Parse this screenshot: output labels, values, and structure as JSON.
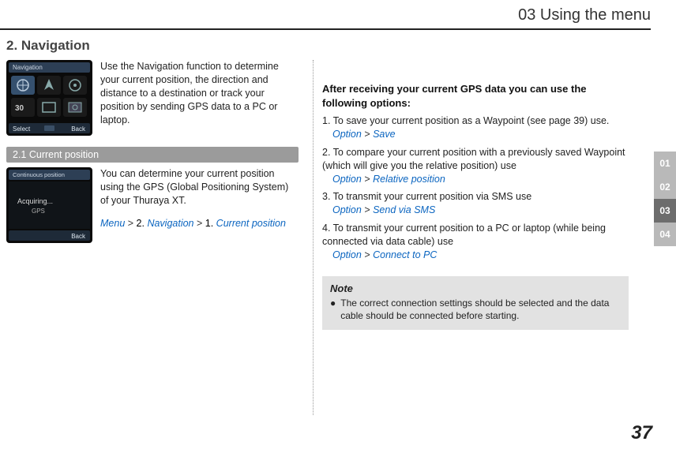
{
  "chapter_header": "03 Using the menu",
  "section_title": "2. Navigation",
  "intro_text": "Use the Navigation function to determine your current position, the direction and distance to a destination or track your position by sending GPS data to a PC or laptop.",
  "subsection_bar": "2.1  Current position",
  "subsection_text": "You can determine your current position using the GPS (Global Positioning System) of your Thuraya XT.",
  "menu_path": {
    "p1": "Menu",
    "s1": " > ",
    "p2": "2.",
    "p3": " Navigation",
    "s2": " > ",
    "p4": "1.",
    "p5": " Current position"
  },
  "right_heading": "After receiving your current GPS data you can use the following options:",
  "items": [
    {
      "num": "1.",
      "text": "To save your current position as a Waypoint (see page 39) use.",
      "opt1": "Option",
      "sep": " > ",
      "opt2": "Save"
    },
    {
      "num": "2.",
      "text": "To compare your current position with a previously saved Waypoint (which will give you the relative position) use",
      "opt1": "Option",
      "sep": " > ",
      "opt2": "Relative position"
    },
    {
      "num": "3.",
      "text": "To transmit your current position via SMS use",
      "opt1": "Option",
      "sep": " > ",
      "opt2": "Send via SMS"
    },
    {
      "num": "4.",
      "text": "To transmit your current position to a PC or laptop (while being connected via data cable) use",
      "opt1": "Option",
      "sep": " > ",
      "opt2": "Connect to PC"
    }
  ],
  "note_title": "Note",
  "note_text": "The correct connection settings should be selected and the data cable should be connected before starting.",
  "tabs": [
    "01",
    "02",
    "03",
    "04"
  ],
  "active_tab_index": 2,
  "page_number": "37",
  "phone1": {
    "title": "Navigation",
    "softkey_left": "Select",
    "softkey_right": "Back"
  },
  "phone2": {
    "title": "Continuous position",
    "body_line1": "Acquiring...",
    "body_line2": "GPS",
    "softkey_right": "Back"
  },
  "colors": {
    "link_blue": "#0b65c0",
    "bar_grey": "#9b9b9b",
    "note_bg": "#e2e2e2",
    "tab_grey": "#b9b9b9",
    "tab_dark": "#6d6d6d"
  }
}
